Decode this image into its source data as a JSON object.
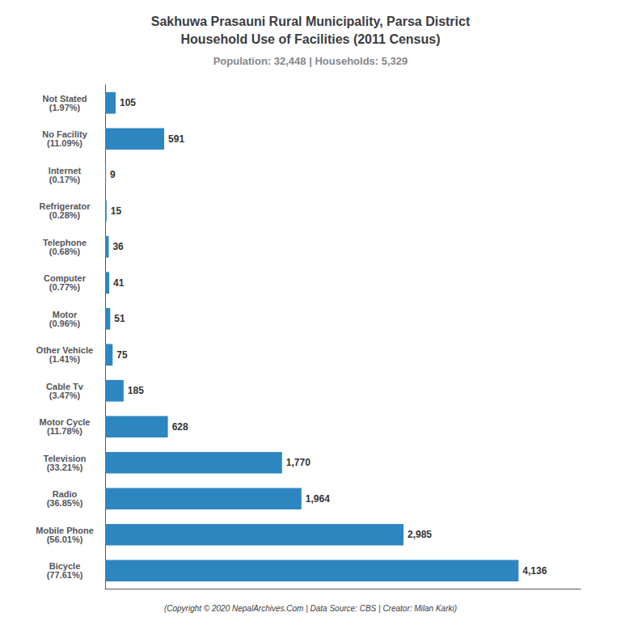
{
  "chart_data": {
    "type": "bar",
    "orientation": "horizontal",
    "title": "Sakhuwa Prasauni Rural Municipality, Parsa District\nHousehold Use of Facilities (2011 Census)",
    "subtitle": "Population: 32,448 | Households: 5,329",
    "annotations": [
      "(Copyright © 2020 NepalArchives.Com | Data Source: CBS | Creator: Milan Karki)"
    ],
    "categories": [
      "Not Stated\n(1.97%)",
      "No Facility\n(11.09%)",
      "Internet\n(0.17%)",
      "Refrigerator\n(0.28%)",
      "Telephone\n(0.68%)",
      "Computer\n(0.77%)",
      "Motor\n(0.96%)",
      "Other Vehicle\n(1.41%)",
      "Cable Tv\n(3.47%)",
      "Motor Cycle\n(11.78%)",
      "Television\n(33.21%)",
      "Radio\n(36.85%)",
      "Mobile Phone\n(56.01%)",
      "Bicycle\n(77.61%)"
    ],
    "values": [
      105,
      591,
      9,
      15,
      36,
      41,
      51,
      75,
      185,
      628,
      1770,
      1964,
      2985,
      4136
    ],
    "value_labels": [
      "105",
      "591",
      "9",
      "15",
      "36",
      "41",
      "51",
      "75",
      "185",
      "628",
      "1,770",
      "1,964",
      "2,985",
      "4,136"
    ],
    "data_labels": true,
    "color": "#2e86c1",
    "xlim": [
      0,
      4756.4
    ],
    "tick_labels": "y",
    "grid": false
  }
}
